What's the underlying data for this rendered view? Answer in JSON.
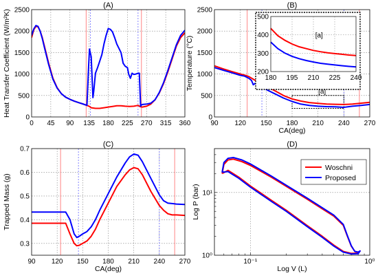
{
  "colors": {
    "woschni": "#ff0000",
    "proposed": "#0000ff",
    "grid": "#7f7f7f",
    "vref_red": "#ff6666",
    "vref_blue": "#6666ff"
  },
  "chart_data": [
    {
      "id": "A",
      "type": "line",
      "title": "(A)",
      "xlabel": "",
      "ylabel": "Heat Transfer Coefficient (W/m²K)",
      "xlim": [
        0,
        360
      ],
      "ylim": [
        0,
        2500
      ],
      "xticks": [
        0,
        45,
        90,
        135,
        180,
        225,
        270,
        315,
        360
      ],
      "yticks": [
        0,
        500,
        1000,
        1500,
        2000,
        2500
      ],
      "grid": true,
      "vref_red": [
        128,
        258
      ],
      "vref_blue": [
        138,
        250
      ],
      "series": [
        {
          "key": "woschni",
          "x": [
            0,
            5,
            10,
            15,
            20,
            25,
            30,
            40,
            50,
            60,
            70,
            80,
            90,
            100,
            110,
            120,
            130,
            135,
            140,
            150,
            160,
            170,
            180,
            190,
            200,
            210,
            220,
            230,
            240,
            250,
            255,
            260,
            270,
            280,
            290,
            300,
            310,
            320,
            330,
            340,
            350,
            360
          ],
          "y": [
            1850,
            2030,
            2110,
            2100,
            2000,
            1850,
            1650,
            1250,
            900,
            680,
            540,
            460,
            410,
            370,
            335,
            305,
            270,
            250,
            215,
            200,
            200,
            215,
            230,
            245,
            260,
            260,
            250,
            245,
            250,
            270,
            240,
            230,
            250,
            300,
            400,
            560,
            780,
            1050,
            1350,
            1650,
            1850,
            1960
          ]
        },
        {
          "key": "proposed",
          "x": [
            0,
            5,
            10,
            15,
            20,
            25,
            30,
            40,
            50,
            60,
            70,
            80,
            90,
            100,
            110,
            120,
            130,
            134,
            136,
            140,
            144,
            146,
            150,
            155,
            160,
            165,
            170,
            175,
            180,
            185,
            190,
            195,
            200,
            210,
            215,
            220,
            225,
            228,
            232,
            236,
            240,
            245,
            250,
            253,
            256,
            258,
            260,
            270,
            280,
            290,
            300,
            310,
            320,
            330,
            340,
            350,
            360
          ],
          "y": [
            1900,
            2050,
            2130,
            2110,
            2000,
            1830,
            1620,
            1220,
            880,
            670,
            540,
            460,
            410,
            370,
            335,
            305,
            270,
            1200,
            1580,
            1400,
            450,
            600,
            1020,
            1150,
            1300,
            1450,
            1700,
            1900,
            2060,
            2040,
            1980,
            1850,
            1700,
            1500,
            1250,
            1180,
            1150,
            1000,
            900,
            1020,
            990,
            1000,
            1020,
            1020,
            250,
            280,
            290,
            300,
            320,
            400,
            570,
            800,
            1080,
            1380,
            1680,
            1900,
            2020
          ]
        }
      ]
    },
    {
      "id": "B",
      "type": "line",
      "title": "(B)",
      "xlabel": "CA(deg)",
      "ylabel": "Temperature (°C)",
      "xlim": [
        90,
        270
      ],
      "ylim": [
        0,
        2500
      ],
      "xticks": [
        90,
        120,
        150,
        180,
        210,
        240,
        270
      ],
      "yticks": [
        0,
        500,
        1000,
        1500,
        2000,
        2500
      ],
      "grid": true,
      "vref_red": [
        128,
        258
      ],
      "vref_blue": [
        145,
        240
      ],
      "series": [
        {
          "key": "woschni",
          "x": [
            90,
            100,
            110,
            120,
            125,
            130,
            135,
            140,
            145,
            150,
            160,
            170,
            180,
            190,
            200,
            210,
            220,
            230,
            240,
            250,
            260,
            270
          ],
          "y": [
            1190,
            1120,
            1060,
            1000,
            975,
            940,
            880,
            820,
            770,
            720,
            610,
            500,
            420,
            370,
            335,
            315,
            300,
            295,
            290,
            300,
            320,
            340
          ]
        },
        {
          "key": "proposed",
          "x": [
            90,
            100,
            110,
            120,
            125,
            130,
            133,
            135,
            137,
            140,
            145,
            150,
            160,
            170,
            180,
            190,
            200,
            210,
            220,
            230,
            240,
            250,
            260,
            270
          ],
          "y": [
            1150,
            1090,
            1030,
            970,
            950,
            900,
            850,
            750,
            780,
            750,
            710,
            640,
            540,
            440,
            360,
            300,
            270,
            250,
            240,
            235,
            225,
            250,
            270,
            290
          ]
        }
      ],
      "inset": {
        "label": "[a]",
        "xlim": [
          180,
          240
        ],
        "ylim": [
          200,
          500
        ],
        "xticks": [
          180,
          195,
          210,
          225,
          240
        ],
        "yticks": [
          200,
          300,
          400,
          500
        ],
        "series": [
          {
            "key": "woschni",
            "x": [
              180,
              185,
              190,
              195,
              200,
              205,
              210,
              215,
              220,
              225,
              230,
              235,
              240
            ],
            "y": [
              435,
              395,
              370,
              350,
              335,
              325,
              315,
              308,
              302,
              298,
              294,
              290,
              287
            ]
          },
          {
            "key": "proposed",
            "x": [
              180,
              185,
              190,
              195,
              200,
              205,
              210,
              215,
              220,
              225,
              230,
              235,
              240
            ],
            "y": [
              360,
              325,
              300,
              283,
              270,
              260,
              252,
              245,
              240,
              236,
              232,
              228,
              225
            ]
          }
        ],
        "zoom_label": "[a]"
      }
    },
    {
      "id": "C",
      "type": "line",
      "title": "(C)",
      "xlabel": "CA(deg)",
      "ylabel": "Trapped Mass (g)",
      "xlim": [
        90,
        270
      ],
      "ylim": [
        0.25,
        0.7
      ],
      "xticks": [
        90,
        120,
        150,
        180,
        210,
        240,
        270
      ],
      "yticks": [
        0.3,
        0.4,
        0.5,
        0.6,
        0.7
      ],
      "grid": true,
      "vref_red": [
        124,
        258
      ],
      "vref_blue": [
        145,
        240
      ],
      "series": [
        {
          "key": "woschni",
          "x": [
            90,
            100,
            110,
            120,
            125,
            130,
            135,
            140,
            143,
            146,
            150,
            155,
            160,
            165,
            170,
            180,
            190,
            200,
            205,
            210,
            215,
            220,
            230,
            240,
            245,
            250,
            255,
            260,
            270
          ],
          "y": [
            0.385,
            0.385,
            0.385,
            0.385,
            0.385,
            0.385,
            0.34,
            0.3,
            0.29,
            0.292,
            0.3,
            0.31,
            0.33,
            0.36,
            0.4,
            0.47,
            0.54,
            0.59,
            0.61,
            0.62,
            0.615,
            0.59,
            0.52,
            0.46,
            0.44,
            0.425,
            0.42,
            0.42,
            0.418
          ]
        },
        {
          "key": "proposed",
          "x": [
            90,
            100,
            110,
            120,
            125,
            130,
            135,
            140,
            143,
            146,
            150,
            155,
            160,
            165,
            170,
            180,
            190,
            200,
            205,
            210,
            215,
            220,
            230,
            240,
            245,
            250,
            255,
            260,
            270
          ],
          "y": [
            0.432,
            0.432,
            0.432,
            0.432,
            0.432,
            0.432,
            0.4,
            0.34,
            0.325,
            0.33,
            0.34,
            0.35,
            0.37,
            0.4,
            0.44,
            0.51,
            0.58,
            0.64,
            0.665,
            0.677,
            0.672,
            0.645,
            0.575,
            0.505,
            0.48,
            0.47,
            0.468,
            0.466,
            0.464
          ]
        }
      ]
    },
    {
      "id": "D",
      "type": "line",
      "title": "(D)",
      "xlabel": "Log V (L)",
      "ylabel": "Log P (bar)",
      "xscale": "log",
      "yscale": "log",
      "xlim": [
        0.05,
        1
      ],
      "ylim": [
        1,
        50
      ],
      "xtick_labels": [
        {
          "value": 0.1,
          "text": "10⁻¹"
        },
        {
          "value": 1,
          "text": "10⁰"
        }
      ],
      "ytick_labels": [
        {
          "value": 1,
          "text": "10⁰"
        },
        {
          "value": 10,
          "text": "10¹"
        }
      ],
      "grid": true,
      "legend": {
        "position": "top-right",
        "entries": [
          "Woschni",
          "Proposed"
        ]
      },
      "series": [
        {
          "key": "woschni",
          "x": [
            0.058,
            0.06,
            0.065,
            0.072,
            0.085,
            0.1,
            0.15,
            0.2,
            0.3,
            0.4,
            0.5,
            0.6,
            0.65,
            0.7,
            0.75,
            0.8,
            0.83,
            0.8,
            0.7,
            0.6,
            0.5,
            0.4,
            0.3,
            0.2,
            0.15,
            0.1,
            0.08,
            0.065,
            0.058
          ],
          "y": [
            20,
            28,
            33,
            34,
            31,
            27,
            17.5,
            12.5,
            7.8,
            5.5,
            4.2,
            3.0,
            2.0,
            1.4,
            1.15,
            1.12,
            1.17,
            1.08,
            1.07,
            1.15,
            1.45,
            2.0,
            2.95,
            5.2,
            7.5,
            12.7,
            17.5,
            22.5,
            20
          ]
        },
        {
          "key": "proposed",
          "x": [
            0.058,
            0.06,
            0.065,
            0.072,
            0.085,
            0.1,
            0.15,
            0.2,
            0.3,
            0.4,
            0.5,
            0.6,
            0.65,
            0.7,
            0.75,
            0.8,
            0.83,
            0.8,
            0.7,
            0.6,
            0.5,
            0.4,
            0.3,
            0.2,
            0.15,
            0.1,
            0.08,
            0.065,
            0.058
          ],
          "y": [
            21,
            30,
            35,
            36,
            33,
            28.5,
            18.2,
            13,
            8.1,
            5.7,
            4.35,
            3.1,
            2.05,
            1.42,
            1.15,
            1.12,
            1.17,
            1.06,
            1.05,
            1.12,
            1.4,
            1.93,
            2.85,
            5.0,
            7.2,
            12.2,
            16.8,
            21.5,
            21
          ]
        }
      ]
    }
  ]
}
